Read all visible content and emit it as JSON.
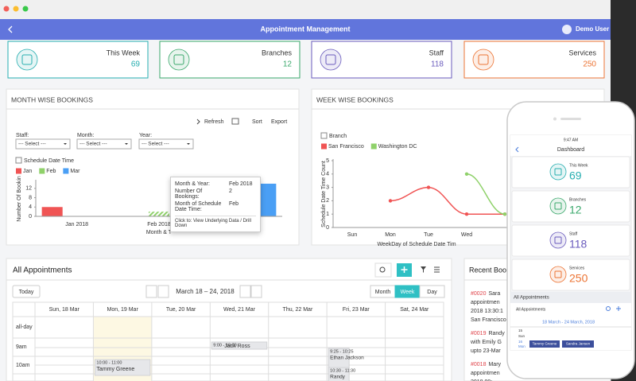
{
  "window": {
    "title": "Appointment Management",
    "user": "Demo User"
  },
  "stats": [
    {
      "label": "This Week",
      "value": 69,
      "color": "#26aeb0"
    },
    {
      "label": "Branches",
      "value": 12,
      "color": "#3aa86b"
    },
    {
      "label": "Staff",
      "value": 118,
      "color": "#6a5bbd"
    },
    {
      "label": "Services",
      "value": 250,
      "color": "#ec7434"
    }
  ],
  "month_panel": {
    "actions": [
      "Refresh",
      "Sort",
      "Export"
    ],
    "filters": [
      {
        "label": "Staff:",
        "value": "--- Select ---"
      },
      {
        "label": "Month:",
        "value": "--- Select ---"
      },
      {
        "label": "Year:",
        "value": "--- Select ---"
      }
    ],
    "checkbox": "Schedule Date Time",
    "tooltip": {
      "rows": [
        [
          "Month & Year:",
          "Feb 2018"
        ],
        [
          "Number Of Bookings:",
          "2"
        ],
        [
          "Month of Schedule Date Time:",
          "Feb"
        ]
      ],
      "footer": "Click to: View Underlying Data / Drill Down"
    }
  },
  "week_panel": {
    "checkbox": "Branch"
  },
  "chart_data": [
    {
      "type": "bar",
      "title": "MONTH WISE BOOKINGS",
      "ylabel": "Number Of Bookin",
      "xlabel": "Month & T",
      "categories": [
        "Jan 2018",
        "Feb 2018",
        null
      ],
      "series": [
        {
          "name": "Jan",
          "color": "#f05454",
          "values": [
            4,
            null,
            null
          ]
        },
        {
          "name": "Feb",
          "color": "#8fd16a",
          "values": [
            null,
            2,
            null
          ]
        },
        {
          "name": "Mar",
          "color": "#4a9ff5",
          "values": [
            null,
            null,
            14
          ]
        }
      ],
      "ylim": [
        0,
        15
      ],
      "yticks": [
        0,
        4,
        8,
        12
      ]
    },
    {
      "type": "line",
      "title": "WEEK WISE BOOKINGS",
      "ylabel": "Schedule Date Time Count",
      "xlabel": "WeekDay of Schedule Date Tim",
      "categories": [
        "Sun",
        "Mon",
        "Tue",
        "Wed",
        null
      ],
      "series": [
        {
          "name": "San Francisco",
          "color": "#f05454",
          "values": [
            null,
            2,
            3,
            1,
            1
          ]
        },
        {
          "name": "Washington DC",
          "color": "#8fd16a",
          "values": [
            null,
            null,
            null,
            4,
            1
          ]
        }
      ],
      "ylim": [
        0,
        5
      ],
      "yticks": [
        0,
        1,
        2,
        3,
        4,
        5
      ]
    }
  ],
  "appointments": {
    "title": "All Appointments",
    "today": "Today",
    "range": "March 18 – 24, 2018",
    "views": [
      "Month",
      "Week",
      "Day"
    ],
    "days": [
      "Sun, 18 Mar",
      "Mon, 19 Mar",
      "Tue, 20 Mar",
      "Wed, 21 Mar",
      "Thu, 22 Mar",
      "Fri, 23 Mar",
      "Sat, 24 Mar"
    ],
    "rows": [
      "all-day",
      "9am",
      "10am"
    ],
    "events": [
      {
        "time": "9:00 - 10:00",
        "name": "Jack Ross"
      },
      {
        "time": "10:00 - 11:00",
        "name": "Tammy Greene"
      },
      {
        "time": "9:25 - 10:25",
        "name": "Ethan Jackson"
      },
      {
        "time": "10:30 - 11:30",
        "name": "Randy"
      }
    ]
  },
  "recent": {
    "title": "Recent Boo",
    "items": [
      {
        "id": "#0020",
        "lines": [
          "Sara",
          "appointmen",
          "2018 13:30:1",
          "San Francisco"
        ]
      },
      {
        "id": "#0019",
        "lines": [
          "Randy",
          "with Emily G",
          "upto 23-Mar"
        ]
      },
      {
        "id": "#0018",
        "lines": [
          "Mary",
          "appointmen",
          "2018 09:"
        ]
      }
    ]
  },
  "phone": {
    "time": "9:47 AM",
    "title": "Dashboard",
    "section": "All Appointments",
    "dropdown": "All Appointments",
    "range": "18 March - 24 March, 2018",
    "days": [
      "15",
      "Sun",
      "16",
      "Mon"
    ],
    "events": [
      "Tammy Greene",
      "Sandra Jansen"
    ]
  }
}
